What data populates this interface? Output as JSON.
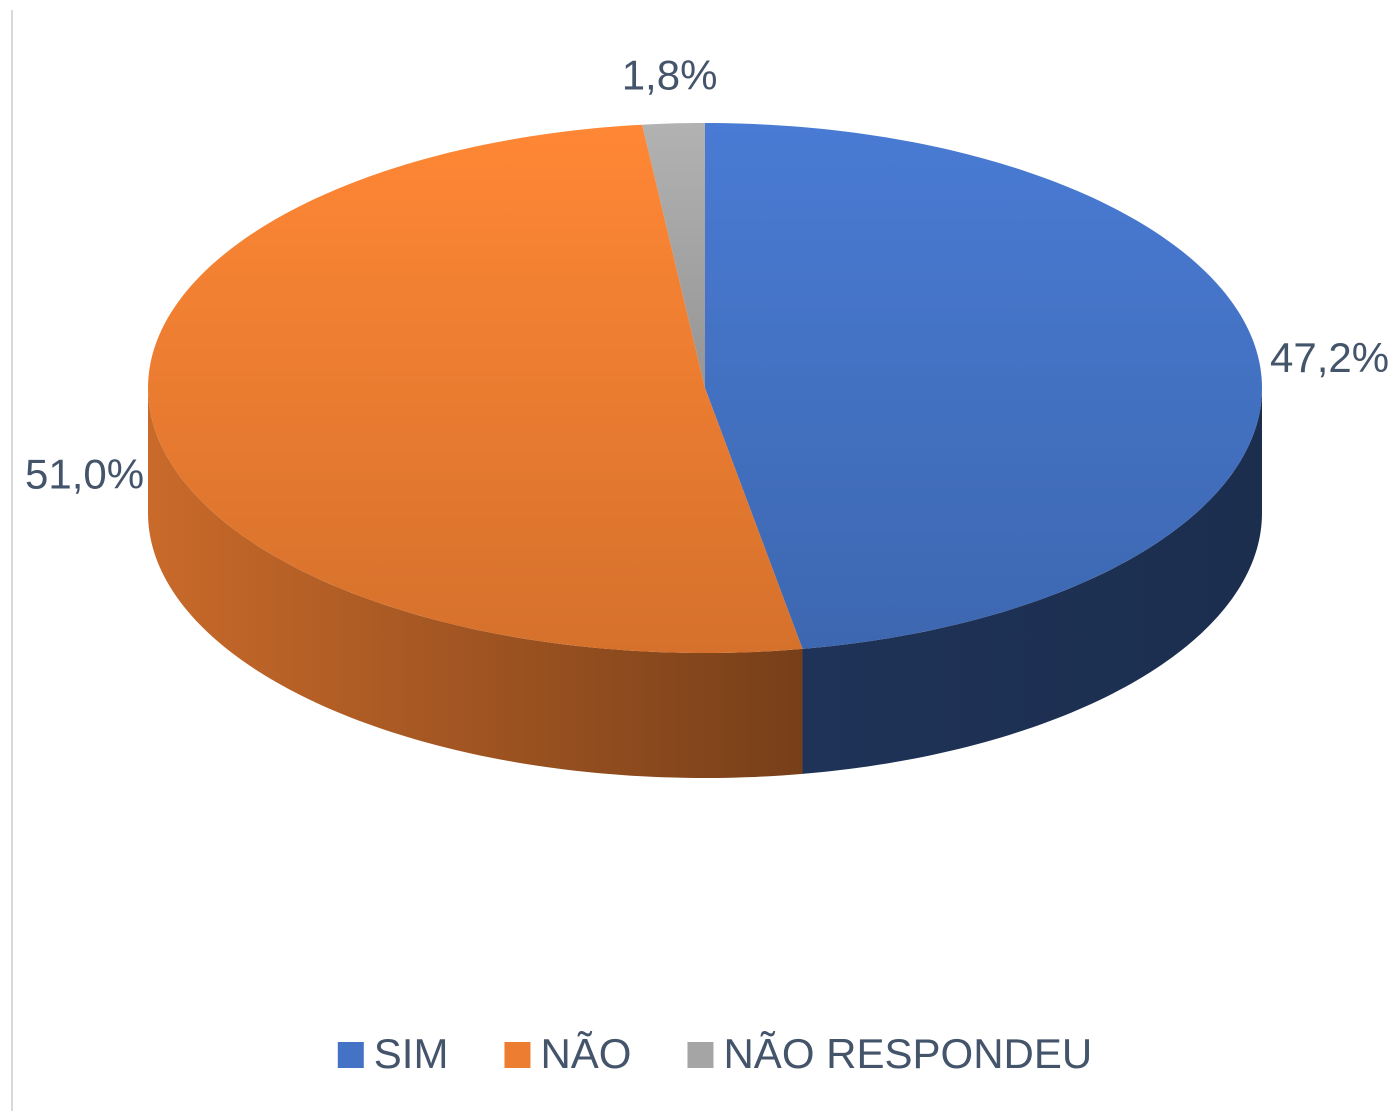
{
  "chart_data": {
    "type": "pie",
    "categories": [
      "SIM",
      "NÃO",
      "NÃO RESPONDEU"
    ],
    "values": [
      47.2,
      51.0,
      1.8
    ],
    "value_labels": [
      "47,2%",
      "51,0%",
      "1,8%"
    ],
    "colors": [
      "#4472c4",
      "#ed7d31",
      "#a5a5a5"
    ],
    "legend": "bottom"
  }
}
